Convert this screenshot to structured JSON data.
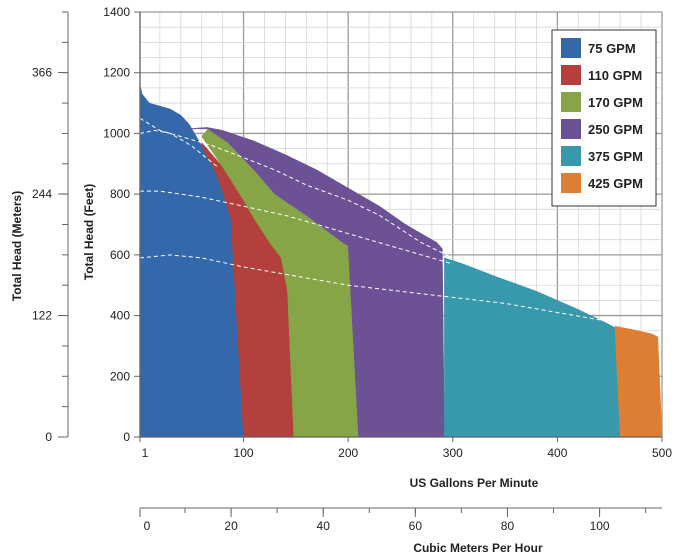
{
  "chart_data": {
    "type": "area",
    "xlabel": "US Gallons Per Minute",
    "ylabel": "Total Head (Feet)",
    "ylabel_meters": "Total Head (Meters)",
    "xlabel_cubic": "Cubic Meters Per Hour",
    "x_ticks": [
      "1",
      "100",
      "200",
      "300",
      "400",
      "500"
    ],
    "y_ticks": [
      "0",
      "200",
      "400",
      "600",
      "800",
      "1000",
      "1200",
      "1400"
    ],
    "meters_ticks": [
      "0",
      "122",
      "244",
      "366"
    ],
    "cubic_ticks": [
      "0",
      "20",
      "40",
      "60",
      "80",
      "100"
    ],
    "xlim": [
      1,
      500
    ],
    "ylim": [
      0,
      1400
    ],
    "grid": true,
    "legend_position": "top-right",
    "series": [
      {
        "name": "75 GPM",
        "color": "#3468ab",
        "x": [
          1,
          3,
          10,
          20,
          30,
          40,
          48,
          60,
          75,
          88,
          90,
          100,
          100,
          1
        ],
        "y": [
          1160,
          1130,
          1100,
          1090,
          1080,
          1060,
          1030,
          960,
          860,
          720,
          700,
          0,
          0,
          0
        ]
      },
      {
        "name": "110 GPM",
        "color": "#b3403c",
        "x": [
          60,
          80,
          100,
          110,
          125,
          136,
          142,
          148,
          100,
          88,
          75,
          60
        ],
        "y": [
          970,
          890,
          780,
          720,
          640,
          590,
          480,
          0,
          0,
          720,
          860,
          960
        ]
      },
      {
        "name": "170 GPM",
        "color": "#86a546",
        "x": [
          60,
          66,
          85,
          110,
          130,
          160,
          195,
          200,
          210,
          148,
          142,
          136,
          125,
          110,
          100,
          80
        ],
        "y": [
          990,
          1015,
          970,
          880,
          800,
          730,
          640,
          630,
          0,
          0,
          480,
          590,
          640,
          720,
          780,
          890
        ]
      },
      {
        "name": "250 GPM",
        "color": "#6c5294",
        "x": [
          45,
          65,
          80,
          110,
          140,
          170,
          200,
          230,
          255,
          285,
          290,
          292,
          210,
          200,
          195,
          160,
          130,
          110,
          85,
          66
        ],
        "y": [
          1015,
          1020,
          1010,
          975,
          930,
          880,
          820,
          760,
          700,
          640,
          620,
          0,
          0,
          630,
          640,
          730,
          800,
          880,
          970,
          1015
        ]
      },
      {
        "name": "375 GPM",
        "color": "#3898ac",
        "x": [
          292,
          310,
          340,
          380,
          420,
          450,
          455,
          460,
          292
        ],
        "y": [
          590,
          570,
          530,
          480,
          420,
          370,
          360,
          0,
          0
        ]
      },
      {
        "name": "425 GPM",
        "color": "#de7e33",
        "x": [
          455,
          470,
          490,
          496,
          500,
          460
        ],
        "y": [
          365,
          355,
          340,
          330,
          0,
          0
        ]
      }
    ],
    "efficiency_curves": [
      {
        "x": [
          1,
          15,
          30,
          50,
          75
        ],
        "y": [
          1000,
          1010,
          1000,
          960,
          890
        ]
      },
      {
        "x": [
          1,
          20,
          40,
          70,
          100,
          130,
          160,
          200,
          230,
          270,
          300
        ],
        "y": [
          1050,
          1010,
          990,
          960,
          920,
          880,
          830,
          780,
          730,
          640,
          590
        ]
      },
      {
        "x": [
          1,
          20,
          60,
          100,
          140,
          180,
          220,
          250,
          280,
          300
        ],
        "y": [
          810,
          810,
          790,
          760,
          730,
          690,
          650,
          620,
          590,
          570
        ]
      },
      {
        "x": [
          1,
          30,
          60,
          100,
          150,
          200,
          250,
          300,
          350,
          400,
          450
        ],
        "y": [
          590,
          600,
          590,
          560,
          530,
          500,
          480,
          460,
          440,
          410,
          380
        ]
      }
    ]
  }
}
